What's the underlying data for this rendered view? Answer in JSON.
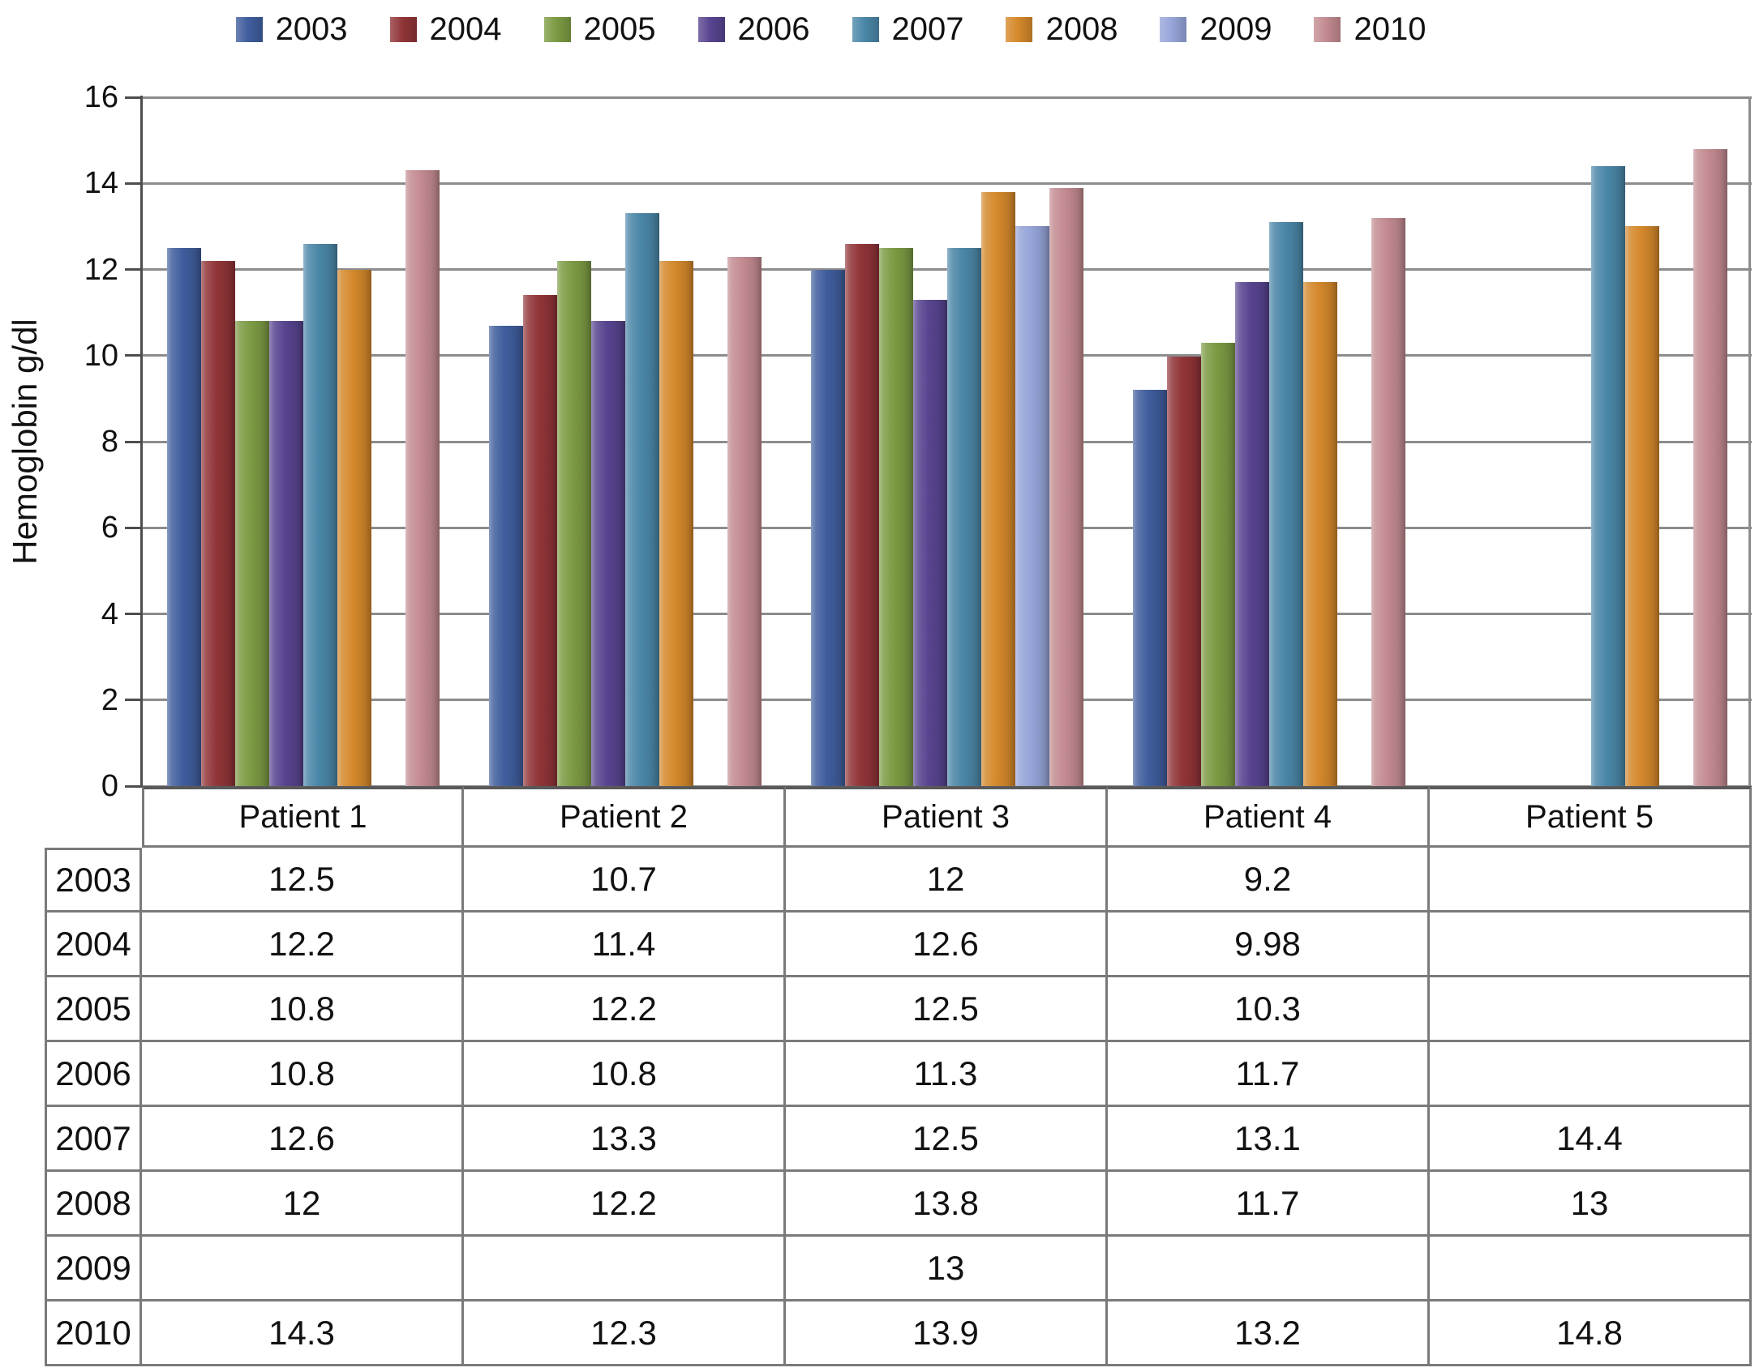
{
  "figure": {
    "y_axis_title": "Hemoglobin g/dl"
  },
  "chart_data": {
    "type": "bar",
    "title": "",
    "xlabel": "",
    "ylabel": "Hemoglobin g/dl",
    "ylim": [
      0,
      16
    ],
    "yticks": [
      0,
      2,
      4,
      6,
      8,
      10,
      12,
      14,
      16
    ],
    "grid": true,
    "legend_position": "top",
    "categories": [
      "Patient 1",
      "Patient 2",
      "Patient 3",
      "Patient 4",
      "Patient 5"
    ],
    "series": [
      {
        "name": "2003",
        "color": "#405E9E",
        "values": [
          12.5,
          10.7,
          12,
          9.2,
          null
        ]
      },
      {
        "name": "2004",
        "color": "#913538",
        "values": [
          12.2,
          11.4,
          12.6,
          9.98,
          null
        ]
      },
      {
        "name": "2005",
        "color": "#7C9B43",
        "values": [
          10.8,
          12.2,
          12.5,
          10.3,
          null
        ]
      },
      {
        "name": "2006",
        "color": "#584490",
        "values": [
          10.8,
          10.8,
          11.3,
          11.7,
          null
        ]
      },
      {
        "name": "2007",
        "color": "#4B87A8",
        "values": [
          12.6,
          13.3,
          12.5,
          13.1,
          14.4
        ]
      },
      {
        "name": "2008",
        "color": "#D5892C",
        "values": [
          12,
          12.2,
          13.8,
          11.7,
          13
        ]
      },
      {
        "name": "2009",
        "color": "#96A5D9",
        "values": [
          null,
          null,
          13,
          null,
          null
        ]
      },
      {
        "name": "2010",
        "color": "#C38B91",
        "values": [
          14.3,
          12.3,
          13.9,
          13.2,
          14.8
        ]
      }
    ]
  },
  "table": {
    "corner_label": "",
    "column_headers": [
      "Patient 1",
      "Patient 2",
      "Patient 3",
      "Patient 4",
      "Patient 5"
    ],
    "rows": [
      {
        "year": "2003",
        "cells": [
          "12.5",
          "10.7",
          "12",
          "9.2",
          ""
        ]
      },
      {
        "year": "2004",
        "cells": [
          "12.2",
          "11.4",
          "12.6",
          "9.98",
          ""
        ]
      },
      {
        "year": "2005",
        "cells": [
          "10.8",
          "12.2",
          "12.5",
          "10.3",
          ""
        ]
      },
      {
        "year": "2006",
        "cells": [
          "10.8",
          "10.8",
          "11.3",
          "11.7",
          ""
        ]
      },
      {
        "year": "2007",
        "cells": [
          "12.6",
          "13.3",
          "12.5",
          "13.1",
          "14.4"
        ]
      },
      {
        "year": "2008",
        "cells": [
          "12",
          "12.2",
          "13.8",
          "11.7",
          "13"
        ]
      },
      {
        "year": "2009",
        "cells": [
          "",
          "",
          "13",
          "",
          ""
        ]
      },
      {
        "year": "2010",
        "cells": [
          "14.3",
          "12.3",
          "13.9",
          "13.2",
          "14.8"
        ]
      }
    ]
  }
}
